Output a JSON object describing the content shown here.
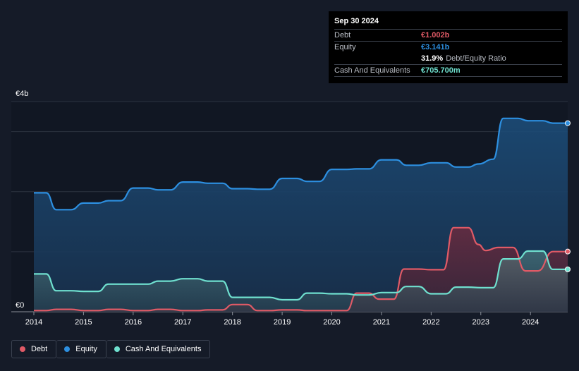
{
  "tooltip": {
    "date": "Sep 30 2024",
    "debt_label": "Debt",
    "debt_value": "€1.002b",
    "equity_label": "Equity",
    "equity_value": "€3.141b",
    "ratio_value": "31.9%",
    "ratio_label": "Debt/Equity Ratio",
    "cash_label": "Cash And Equivalents",
    "cash_value": "€705.700m"
  },
  "legend": {
    "debt": "Debt",
    "equity": "Equity",
    "cash": "Cash And Equivalents"
  },
  "colors": {
    "debt": "#e05a66",
    "equity": "#2d8fe0",
    "cash": "#6fe0cf",
    "background": "#151b28"
  },
  "chart_data": {
    "type": "area",
    "title": "",
    "y_max_label": "€4b",
    "y_min_label": "€0",
    "ylim": [
      0,
      3.5
    ],
    "xlim": [
      2014.0,
      2024.75
    ],
    "x_ticks": [
      2014,
      2015,
      2016,
      2017,
      2018,
      2019,
      2020,
      2021,
      2022,
      2023,
      2024
    ],
    "x_tick_labels": [
      "2014",
      "2015",
      "2016",
      "2017",
      "2018",
      "2019",
      "2020",
      "2021",
      "2022",
      "2023",
      "2024"
    ],
    "series": [
      {
        "name": "Equity",
        "key": "equity",
        "points": [
          [
            2014.0,
            1.98
          ],
          [
            2014.25,
            1.98
          ],
          [
            2014.45,
            1.7
          ],
          [
            2014.75,
            1.7
          ],
          [
            2015.0,
            1.81
          ],
          [
            2015.3,
            1.81
          ],
          [
            2015.5,
            1.85
          ],
          [
            2015.75,
            1.85
          ],
          [
            2016.0,
            2.06
          ],
          [
            2016.3,
            2.06
          ],
          [
            2016.5,
            2.03
          ],
          [
            2016.75,
            2.03
          ],
          [
            2017.0,
            2.16
          ],
          [
            2017.3,
            2.16
          ],
          [
            2017.5,
            2.14
          ],
          [
            2017.8,
            2.14
          ],
          [
            2018.0,
            2.05
          ],
          [
            2018.3,
            2.05
          ],
          [
            2018.5,
            2.04
          ],
          [
            2018.75,
            2.04
          ],
          [
            2019.0,
            2.22
          ],
          [
            2019.3,
            2.22
          ],
          [
            2019.5,
            2.17
          ],
          [
            2019.75,
            2.17
          ],
          [
            2020.0,
            2.37
          ],
          [
            2020.3,
            2.37
          ],
          [
            2020.5,
            2.38
          ],
          [
            2020.75,
            2.38
          ],
          [
            2021.0,
            2.53
          ],
          [
            2021.3,
            2.53
          ],
          [
            2021.5,
            2.44
          ],
          [
            2021.75,
            2.44
          ],
          [
            2022.0,
            2.48
          ],
          [
            2022.3,
            2.48
          ],
          [
            2022.5,
            2.41
          ],
          [
            2022.75,
            2.41
          ],
          [
            2022.95,
            2.46
          ],
          [
            2023.25,
            2.54
          ],
          [
            2023.45,
            3.22
          ],
          [
            2023.75,
            3.22
          ],
          [
            2023.95,
            3.18
          ],
          [
            2024.25,
            3.18
          ],
          [
            2024.45,
            3.141
          ],
          [
            2024.75,
            3.141
          ]
        ]
      },
      {
        "name": "Debt",
        "key": "debt",
        "points": [
          [
            2014.0,
            0.02
          ],
          [
            2014.25,
            0.02
          ],
          [
            2014.45,
            0.04
          ],
          [
            2014.75,
            0.04
          ],
          [
            2015.0,
            0.02
          ],
          [
            2015.3,
            0.02
          ],
          [
            2015.5,
            0.04
          ],
          [
            2015.75,
            0.04
          ],
          [
            2016.0,
            0.02
          ],
          [
            2016.3,
            0.02
          ],
          [
            2016.5,
            0.04
          ],
          [
            2016.75,
            0.04
          ],
          [
            2017.0,
            0.02
          ],
          [
            2017.3,
            0.02
          ],
          [
            2017.5,
            0.03
          ],
          [
            2017.8,
            0.03
          ],
          [
            2018.0,
            0.12
          ],
          [
            2018.3,
            0.12
          ],
          [
            2018.5,
            0.02
          ],
          [
            2018.75,
            0.02
          ],
          [
            2019.0,
            0.03
          ],
          [
            2019.3,
            0.03
          ],
          [
            2019.5,
            0.02
          ],
          [
            2019.75,
            0.02
          ],
          [
            2020.0,
            0.02
          ],
          [
            2020.3,
            0.02
          ],
          [
            2020.5,
            0.31
          ],
          [
            2020.75,
            0.31
          ],
          [
            2020.95,
            0.21
          ],
          [
            2021.25,
            0.21
          ],
          [
            2021.45,
            0.71
          ],
          [
            2021.75,
            0.71
          ],
          [
            2022.0,
            0.7
          ],
          [
            2022.25,
            0.7
          ],
          [
            2022.45,
            1.4
          ],
          [
            2022.75,
            1.4
          ],
          [
            2022.95,
            1.12
          ],
          [
            2023.1,
            1.02
          ],
          [
            2023.35,
            1.07
          ],
          [
            2023.65,
            1.07
          ],
          [
            2023.9,
            0.68
          ],
          [
            2024.15,
            0.68
          ],
          [
            2024.45,
            1.002
          ],
          [
            2024.75,
            1.002
          ]
        ]
      },
      {
        "name": "Cash And Equivalents",
        "key": "cash",
        "points": [
          [
            2014.0,
            0.63
          ],
          [
            2014.25,
            0.63
          ],
          [
            2014.45,
            0.35
          ],
          [
            2014.75,
            0.35
          ],
          [
            2015.0,
            0.34
          ],
          [
            2015.3,
            0.34
          ],
          [
            2015.5,
            0.46
          ],
          [
            2015.75,
            0.46
          ],
          [
            2016.0,
            0.46
          ],
          [
            2016.3,
            0.46
          ],
          [
            2016.5,
            0.51
          ],
          [
            2016.75,
            0.51
          ],
          [
            2017.0,
            0.55
          ],
          [
            2017.3,
            0.55
          ],
          [
            2017.5,
            0.51
          ],
          [
            2017.8,
            0.51
          ],
          [
            2018.0,
            0.24
          ],
          [
            2018.3,
            0.24
          ],
          [
            2018.5,
            0.24
          ],
          [
            2018.75,
            0.24
          ],
          [
            2019.0,
            0.2
          ],
          [
            2019.3,
            0.2
          ],
          [
            2019.5,
            0.31
          ],
          [
            2019.75,
            0.31
          ],
          [
            2020.0,
            0.3
          ],
          [
            2020.3,
            0.3
          ],
          [
            2020.5,
            0.28
          ],
          [
            2020.75,
            0.28
          ],
          [
            2021.0,
            0.32
          ],
          [
            2021.3,
            0.32
          ],
          [
            2021.5,
            0.42
          ],
          [
            2021.75,
            0.42
          ],
          [
            2022.0,
            0.3
          ],
          [
            2022.3,
            0.3
          ],
          [
            2022.5,
            0.41
          ],
          [
            2022.75,
            0.41
          ],
          [
            2023.0,
            0.4
          ],
          [
            2023.25,
            0.4
          ],
          [
            2023.45,
            0.88
          ],
          [
            2023.75,
            0.88
          ],
          [
            2023.95,
            1.01
          ],
          [
            2024.25,
            1.01
          ],
          [
            2024.45,
            0.706
          ],
          [
            2024.75,
            0.706
          ]
        ]
      }
    ]
  }
}
